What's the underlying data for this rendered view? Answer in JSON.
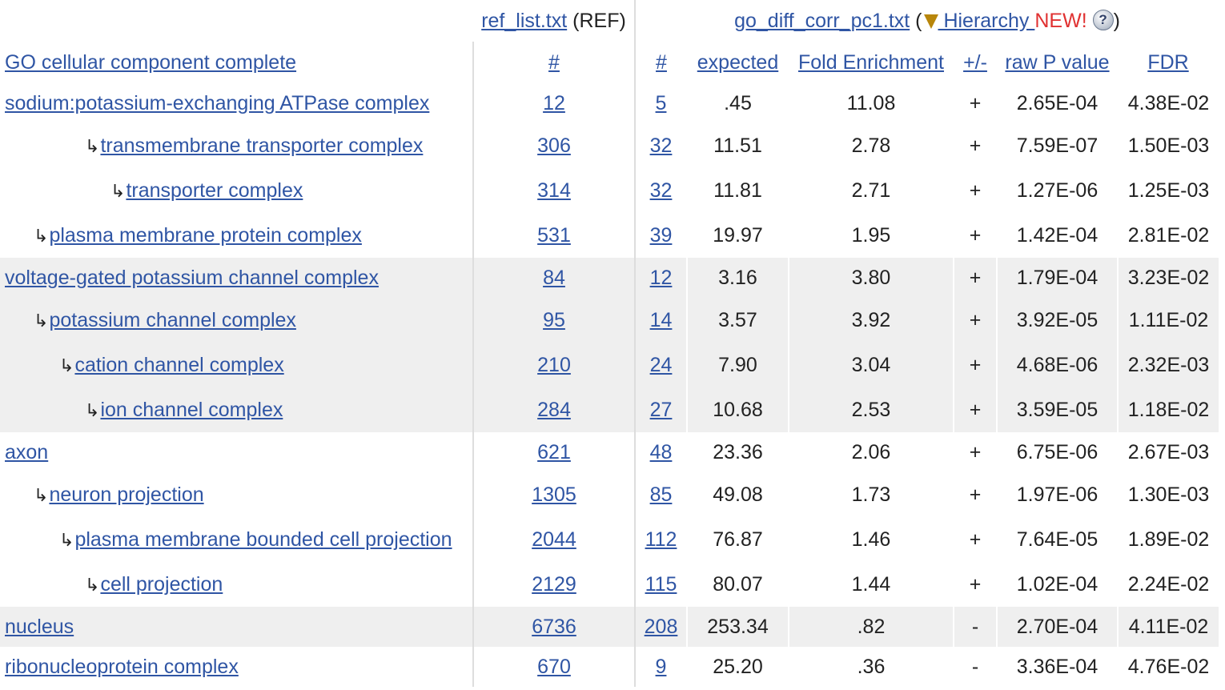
{
  "header": {
    "ref_file": "ref_list.txt",
    "ref_tag": "(REF)",
    "query_file": "go_diff_corr_pc1.txt",
    "open_paren": "(",
    "hierarchy_label": " Hierarchy ",
    "new_badge": "NEW!",
    "help_glyph": "?",
    "close_paren": ")"
  },
  "columns": {
    "category": "GO cellular component complete",
    "ref_count": "#",
    "count": "#",
    "expected": "expected",
    "fold": "Fold Enrichment",
    "direction": "+/-",
    "pvalue": "raw P value",
    "fdr": "FDR"
  },
  "rows": [
    {
      "indent": 0,
      "term": "sodium:potassium-exchanging ATPase complex",
      "ref": "12",
      "count": "5",
      "expected": ".45",
      "fold": "11.08",
      "dir": "+",
      "p": "2.65E-04",
      "fdr": "4.38E-02"
    },
    {
      "indent": 3,
      "term": "transmembrane transporter complex",
      "ref": "306",
      "count": "32",
      "expected": "11.51",
      "fold": "2.78",
      "dir": "+",
      "p": "7.59E-07",
      "fdr": "1.50E-03"
    },
    {
      "indent": 4,
      "term": "transporter complex",
      "ref": "314",
      "count": "32",
      "expected": "11.81",
      "fold": "2.71",
      "dir": "+",
      "p": "1.27E-06",
      "fdr": "1.25E-03"
    },
    {
      "indent": 1,
      "term": "plasma membrane protein complex",
      "ref": "531",
      "count": "39",
      "expected": "19.97",
      "fold": "1.95",
      "dir": "+",
      "p": "1.42E-04",
      "fdr": "2.81E-02"
    },
    {
      "indent": 0,
      "term": "voltage-gated potassium channel complex",
      "ref": "84",
      "count": "12",
      "expected": "3.16",
      "fold": "3.80",
      "dir": "+",
      "p": "1.79E-04",
      "fdr": "3.23E-02"
    },
    {
      "indent": 1,
      "term": "potassium channel complex",
      "ref": "95",
      "count": "14",
      "expected": "3.57",
      "fold": "3.92",
      "dir": "+",
      "p": "3.92E-05",
      "fdr": "1.11E-02"
    },
    {
      "indent": 2,
      "term": "cation channel complex",
      "ref": "210",
      "count": "24",
      "expected": "7.90",
      "fold": "3.04",
      "dir": "+",
      "p": "4.68E-06",
      "fdr": "2.32E-03"
    },
    {
      "indent": 3,
      "term": "ion channel complex",
      "ref": "284",
      "count": "27",
      "expected": "10.68",
      "fold": "2.53",
      "dir": "+",
      "p": "3.59E-05",
      "fdr": "1.18E-02"
    },
    {
      "indent": 0,
      "term": "axon",
      "ref": "621",
      "count": "48",
      "expected": "23.36",
      "fold": "2.06",
      "dir": "+",
      "p": "6.75E-06",
      "fdr": "2.67E-03"
    },
    {
      "indent": 1,
      "term": "neuron projection",
      "ref": "1305",
      "count": "85",
      "expected": "49.08",
      "fold": "1.73",
      "dir": "+",
      "p": "1.97E-06",
      "fdr": "1.30E-03"
    },
    {
      "indent": 2,
      "term": "plasma membrane bounded cell projection",
      "ref": "2044",
      "count": "112",
      "expected": "76.87",
      "fold": "1.46",
      "dir": "+",
      "p": "7.64E-05",
      "fdr": "1.89E-02"
    },
    {
      "indent": 3,
      "term": "cell projection",
      "ref": "2129",
      "count": "115",
      "expected": "80.07",
      "fold": "1.44",
      "dir": "+",
      "p": "1.02E-04",
      "fdr": "2.24E-02"
    },
    {
      "indent": 0,
      "term": "nucleus",
      "ref": "6736",
      "count": "208",
      "expected": "253.34",
      "fold": ".82",
      "dir": "-",
      "p": "2.70E-04",
      "fdr": "4.11E-02"
    },
    {
      "indent": 0,
      "term": "ribonucleoprotein complex",
      "ref": "670",
      "count": "9",
      "expected": "25.20",
      "fold": ".36",
      "dir": "-",
      "p": "3.36E-04",
      "fdr": "4.76E-02"
    }
  ],
  "arrow_glyph": "↳",
  "colors": {
    "link": "#2f55a4",
    "shade": "#efefef",
    "new": "#e03131",
    "separator": "#dddddd"
  }
}
